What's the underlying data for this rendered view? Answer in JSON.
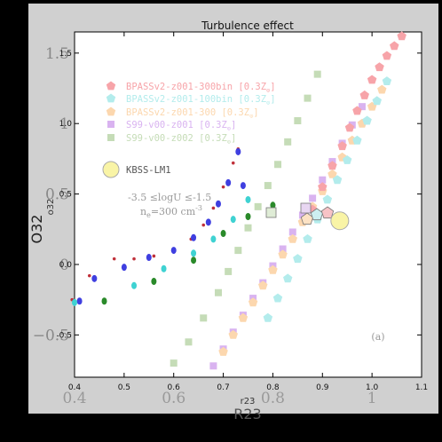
{
  "chart_data": {
    "type": "scatter",
    "title": "Turbulence effect",
    "xlabel": "r23",
    "ylabel": "o32",
    "xlabel_ghost": "R23",
    "ylabel_ghost": "O32",
    "xlim": [
      0.4,
      1.1
    ],
    "ylim": [
      -0.8,
      1.65
    ],
    "xticks": [
      "0.4",
      "0.5",
      "0.6",
      "0.7",
      "0.8",
      "0.9",
      "1.0",
      "1.1"
    ],
    "yticks": [
      "-0.5",
      "0.0",
      "0.5",
      "1.0",
      "1.5"
    ],
    "ghost_xticks": [
      "0.4",
      "0.6",
      "0.8",
      "1"
    ],
    "ghost_yticks": [
      "−0.5",
      "0",
      "0.5",
      "1",
      "1.5"
    ],
    "panel_label": "(a)",
    "legend_position": "upper-left",
    "annotation_line1": "-3.5 ≤logU ≤-1.5",
    "annotation_line2_prefix": "n",
    "annotation_line2_sub": "e",
    "annotation_line2_suffix": "=300 cm",
    "annotation_line2_sup": "-3",
    "series": [
      {
        "name": "BPASSv2-z001-300bin [0.3Z",
        "label_suffix": "]",
        "color": "#f7a4a9",
        "marker": "pentagon",
        "x": [
          0.88,
          0.9,
          0.92,
          0.94,
          0.955,
          0.97,
          0.985,
          1.0,
          1.015,
          1.03,
          1.045,
          1.06
        ],
        "y": [
          0.39,
          0.55,
          0.7,
          0.84,
          0.97,
          1.09,
          1.2,
          1.31,
          1.4,
          1.48,
          1.55,
          1.62
        ]
      },
      {
        "name": "BPASSv2-z001-100bin [0.3Z",
        "label_suffix": "]",
        "color": "#b3ecec",
        "marker": "pentagon",
        "x": [
          0.79,
          0.81,
          0.83,
          0.85,
          0.87,
          0.89,
          0.91,
          0.93,
          0.95,
          0.97,
          0.99,
          1.01,
          1.03
        ],
        "y": [
          -0.38,
          -0.24,
          -0.1,
          0.04,
          0.18,
          0.32,
          0.46,
          0.6,
          0.74,
          0.88,
          1.02,
          1.16,
          1.3
        ]
      },
      {
        "name": "BPASSv2-z001-300 [0.3Z",
        "label_suffix": "]",
        "color": "#fcd7ae",
        "marker": "pentagon",
        "x": [
          0.7,
          0.72,
          0.74,
          0.76,
          0.78,
          0.8,
          0.82,
          0.84,
          0.86,
          0.88,
          0.9,
          0.92,
          0.94,
          0.96,
          0.98,
          1.0,
          1.02
        ],
        "y": [
          -0.62,
          -0.5,
          -0.38,
          -0.27,
          -0.15,
          -0.04,
          0.07,
          0.18,
          0.3,
          0.41,
          0.52,
          0.64,
          0.76,
          0.88,
          1.0,
          1.12,
          1.24
        ]
      },
      {
        "name": "S99-v00-z001 [0.3Z",
        "label_suffix": "]",
        "color": "#d9b3f0",
        "marker": "square",
        "x": [
          0.68,
          0.7,
          0.72,
          0.74,
          0.76,
          0.78,
          0.8,
          0.82,
          0.84,
          0.86,
          0.88,
          0.9,
          0.92,
          0.94,
          0.96,
          0.98
        ],
        "y": [
          -0.72,
          -0.6,
          -0.48,
          -0.36,
          -0.24,
          -0.13,
          -0.01,
          0.11,
          0.23,
          0.35,
          0.47,
          0.6,
          0.73,
          0.86,
          0.99,
          1.12
        ]
      },
      {
        "name": "S99-v00-z002 [0.3Z",
        "label_suffix": "]",
        "color": "#c5dcb7",
        "marker": "square",
        "x": [
          0.6,
          0.63,
          0.66,
          0.69,
          0.71,
          0.73,
          0.75,
          0.77,
          0.79,
          0.81,
          0.83,
          0.85,
          0.87,
          0.89
        ],
        "y": [
          -0.7,
          -0.55,
          -0.38,
          -0.2,
          -0.05,
          0.1,
          0.26,
          0.41,
          0.56,
          0.71,
          0.87,
          1.02,
          1.18,
          1.35
        ]
      },
      {
        "name": "KBSS-LM1",
        "label_suffix": "",
        "color": "#f9f4a6",
        "marker": "circle",
        "x": [
          0.935
        ],
        "y": [
          0.31
        ]
      }
    ],
    "extra_points": {
      "red": {
        "color": "#c0303a",
        "x": [
          0.395,
          0.43,
          0.48,
          0.52,
          0.56,
          0.6,
          0.635,
          0.66,
          0.68,
          0.7,
          0.72,
          0.73
        ],
        "y": [
          -0.25,
          -0.08,
          0.04,
          0.04,
          0.06,
          0.1,
          0.18,
          0.28,
          0.4,
          0.55,
          0.72,
          0.82
        ]
      },
      "blue": {
        "color": "#3f3fe0",
        "x": [
          0.41,
          0.44,
          0.5,
          0.55,
          0.6,
          0.64,
          0.67,
          0.69,
          0.71,
          0.73,
          0.74
        ],
        "y": [
          -0.26,
          -0.1,
          -0.02,
          0.05,
          0.1,
          0.19,
          0.3,
          0.43,
          0.58,
          0.8,
          0.56
        ]
      },
      "cyan": {
        "color": "#3fd2d2",
        "x": [
          0.4,
          0.52,
          0.58,
          0.64,
          0.68,
          0.72,
          0.75
        ],
        "y": [
          -0.27,
          -0.15,
          -0.03,
          0.08,
          0.18,
          0.32,
          0.46
        ]
      },
      "green": {
        "color": "#2a8a2a",
        "x": [
          0.46,
          0.56,
          0.64,
          0.7,
          0.75,
          0.8
        ],
        "y": [
          -0.26,
          -0.12,
          0.03,
          0.22,
          0.34,
          0.42
        ]
      }
    }
  },
  "legend_subscript": "⊙"
}
